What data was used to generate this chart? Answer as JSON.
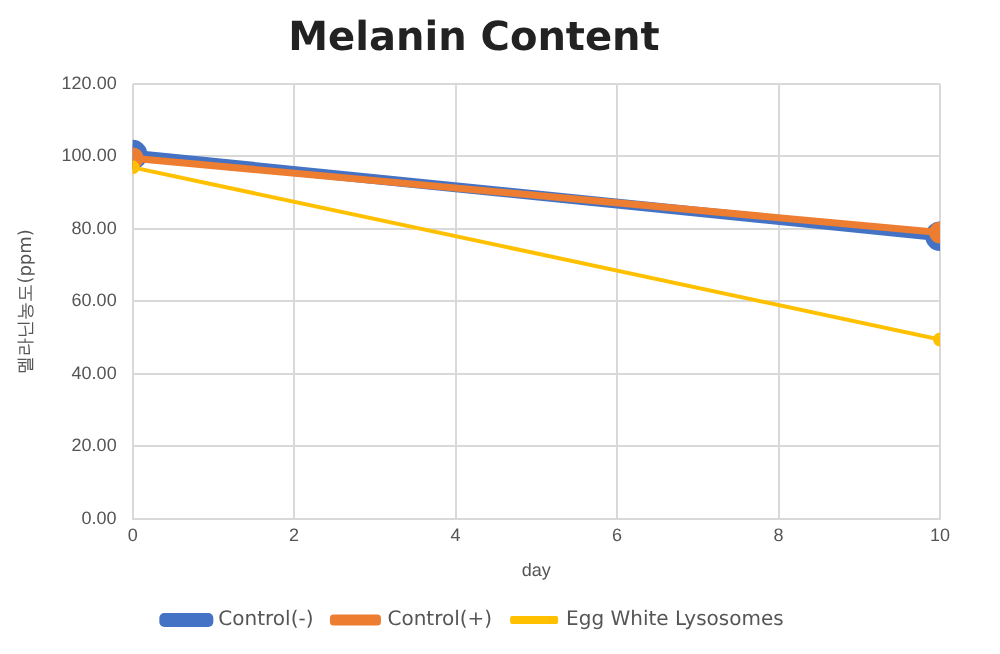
{
  "chart_data": {
    "type": "line",
    "title": "Melanin Content",
    "xlabel": "day",
    "ylabel": "멜라닌농도(ppm)",
    "x": [
      0,
      10
    ],
    "series": [
      {
        "name": "Control(-)",
        "color": "#4472c4",
        "values": [
          100.5,
          78
        ]
      },
      {
        "name": "Control(+)",
        "color": "#ed7d31",
        "values": [
          99.5,
          79
        ]
      },
      {
        "name": "Egg White Lysosomes",
        "color": "#ffc000",
        "values": [
          97,
          49.5
        ]
      }
    ],
    "xlim": [
      0,
      10
    ],
    "xticks": [
      0,
      2,
      4,
      6,
      8,
      10
    ],
    "ylim": [
      0,
      120
    ],
    "yticks": [
      {
        "value": 0,
        "label": "0.00"
      },
      {
        "value": 20,
        "label": "20.00"
      },
      {
        "value": 40,
        "label": "40.00"
      },
      {
        "value": 60,
        "label": "60.00"
      },
      {
        "value": 80,
        "label": "80.00"
      },
      {
        "value": 100,
        "label": "100.00"
      },
      {
        "value": 120,
        "label": "120.00"
      }
    ],
    "grid": true,
    "legend": "bottom",
    "marker": "circle",
    "line_style": "solid"
  }
}
